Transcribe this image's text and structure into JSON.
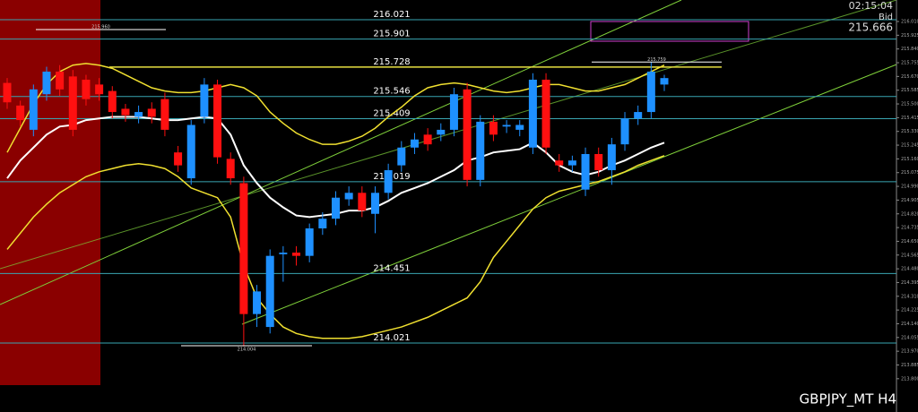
{
  "chart_data": {
    "type": "candlestick",
    "symbol": "GBPJPY_MT H4",
    "clock": "02:15:04",
    "bid_label": "Bid",
    "bid": 215.666,
    "ylim": [
      213.594,
      216.143
    ],
    "yticks": [
      {
        "value": 213.8,
        "label": "213.800"
      },
      {
        "value": 213.885,
        "label": "213.885"
      },
      {
        "value": 213.97,
        "label": "213.970"
      },
      {
        "value": 214.055,
        "label": "214.055"
      },
      {
        "value": 214.14,
        "label": "214.140"
      },
      {
        "value": 214.225,
        "label": "214.225"
      },
      {
        "value": 214.31,
        "label": "214.310"
      },
      {
        "value": 214.395,
        "label": "214.395"
      },
      {
        "value": 214.48,
        "label": "214.480"
      },
      {
        "value": 214.565,
        "label": "214.565"
      },
      {
        "value": 214.65,
        "label": "214.650"
      },
      {
        "value": 214.735,
        "label": "214.735"
      },
      {
        "value": 214.82,
        "label": "214.820"
      },
      {
        "value": 214.905,
        "label": "214.905"
      },
      {
        "value": 214.99,
        "label": "214.990"
      },
      {
        "value": 215.075,
        "label": "215.075"
      },
      {
        "value": 215.16,
        "label": "215.160"
      },
      {
        "value": 215.245,
        "label": "215.245"
      },
      {
        "value": 215.33,
        "label": "215.330"
      },
      {
        "value": 215.415,
        "label": "215.415"
      },
      {
        "value": 215.5,
        "label": "215.500"
      },
      {
        "value": 215.585,
        "label": "215.585"
      },
      {
        "value": 215.67,
        "label": "215.670"
      },
      {
        "value": 215.755,
        "label": "215.755"
      },
      {
        "value": 215.84,
        "label": "215.840"
      },
      {
        "value": 215.925,
        "label": "215.925"
      },
      {
        "value": 216.01,
        "label": "216.010"
      }
    ],
    "up_color": "#1e90ff",
    "down_color": "#ff1010",
    "ohlc": [
      [
        215.63,
        215.66,
        215.47,
        215.51
      ],
      [
        215.49,
        215.52,
        215.36,
        215.4
      ],
      [
        215.34,
        215.62,
        215.3,
        215.59
      ],
      [
        215.56,
        215.73,
        215.52,
        215.7
      ],
      [
        215.7,
        215.74,
        215.55,
        215.59
      ],
      [
        215.67,
        215.71,
        215.3,
        215.34
      ],
      [
        215.65,
        215.68,
        215.49,
        215.53
      ],
      [
        215.62,
        215.66,
        215.52,
        215.56
      ],
      [
        215.58,
        215.61,
        215.41,
        215.45
      ],
      [
        215.47,
        215.5,
        215.39,
        215.43
      ],
      [
        215.42,
        215.49,
        215.38,
        215.45
      ],
      [
        215.47,
        215.51,
        215.38,
        215.42
      ],
      [
        215.53,
        215.57,
        215.3,
        215.34
      ],
      [
        215.2,
        215.24,
        215.08,
        215.12
      ],
      [
        215.04,
        215.4,
        215,
        215.37
      ],
      [
        215.42,
        215.66,
        215.38,
        215.62
      ],
      [
        215.62,
        215.65,
        215.13,
        215.17
      ],
      [
        215.16,
        215.2,
        215,
        215.04
      ],
      [
        215.01,
        215.05,
        214,
        214.2
      ],
      [
        214.2,
        214.38,
        214.12,
        214.34
      ],
      [
        214.12,
        214.6,
        214.08,
        214.56
      ],
      [
        214.57,
        214.62,
        214.4,
        214.58
      ],
      [
        214.58,
        214.62,
        214.5,
        214.56
      ],
      [
        214.56,
        214.76,
        214.52,
        214.73
      ],
      [
        214.73,
        214.83,
        214.69,
        214.79
      ],
      [
        214.79,
        214.96,
        214.75,
        214.92
      ],
      [
        214.91,
        214.99,
        214.87,
        214.95
      ],
      [
        214.95,
        214.99,
        214.8,
        214.84
      ],
      [
        214.82,
        214.99,
        214.7,
        214.95
      ],
      [
        214.95,
        215.13,
        214.91,
        215.09
      ],
      [
        215.12,
        215.27,
        215.08,
        215.23
      ],
      [
        215.23,
        215.32,
        215.19,
        215.28
      ],
      [
        215.31,
        215.35,
        215.21,
        215.25
      ],
      [
        215.31,
        215.38,
        215.27,
        215.34
      ],
      [
        215.34,
        215.6,
        215.3,
        215.56
      ],
      [
        215.59,
        215.63,
        214.99,
        215.03
      ],
      [
        215.03,
        215.43,
        214.99,
        215.39
      ],
      [
        215.39,
        215.43,
        215.27,
        215.31
      ],
      [
        215.36,
        215.4,
        215.32,
        215.37
      ],
      [
        215.34,
        215.4,
        215.3,
        215.37
      ],
      [
        215.23,
        215.69,
        215.19,
        215.65
      ],
      [
        215.65,
        215.69,
        215.19,
        215.23
      ],
      [
        215.15,
        215.19,
        215.08,
        215.12
      ],
      [
        215.12,
        215.18,
        215.08,
        215.15
      ],
      [
        214.97,
        215.23,
        214.93,
        215.19
      ],
      [
        215.19,
        215.23,
        215.05,
        215.09
      ],
      [
        215.09,
        215.29,
        215,
        215.25
      ],
      [
        215.25,
        215.45,
        215.21,
        215.41
      ],
      [
        215.41,
        215.49,
        215.37,
        215.45
      ],
      [
        215.45,
        215.76,
        215.41,
        215.7
      ],
      [
        215.62,
        215.68,
        215.58,
        215.66
      ]
    ],
    "series": [
      {
        "color": "#ffffff",
        "width": 2,
        "values": [
          215.04,
          215.15,
          215.23,
          215.31,
          215.36,
          215.37,
          215.4,
          215.41,
          215.42,
          215.42,
          215.42,
          215.41,
          215.4,
          215.4,
          215.41,
          215.42,
          215.41,
          215.31,
          215.12,
          215.01,
          214.92,
          214.86,
          214.81,
          214.8,
          214.81,
          214.82,
          214.84,
          214.84,
          214.86,
          214.9,
          214.95,
          214.98,
          215.01,
          215.05,
          215.09,
          215.15,
          215.17,
          215.2,
          215.21,
          215.22,
          215.26,
          215.2,
          215.12,
          215.08,
          215.06,
          215.08,
          215.12,
          215.15,
          215.19,
          215.23,
          215.26
        ]
      },
      {
        "color": "#f0e030",
        "width": 1.5,
        "values": [
          215.2,
          215.35,
          215.5,
          215.62,
          215.7,
          215.74,
          215.75,
          215.74,
          215.72,
          215.68,
          215.64,
          215.6,
          215.58,
          215.57,
          215.57,
          215.58,
          215.6,
          215.62,
          215.6,
          215.55,
          215.45,
          215.38,
          215.32,
          215.28,
          215.25,
          215.25,
          215.27,
          215.3,
          215.35,
          215.42,
          215.48,
          215.55,
          215.6,
          215.62,
          215.63,
          215.62,
          215.6,
          215.58,
          215.57,
          215.58,
          215.6,
          215.62,
          215.62,
          215.6,
          215.58,
          215.58,
          215.6,
          215.62,
          215.66,
          215.7,
          215.74
        ]
      },
      {
        "color": "#f0e030",
        "width": 1.5,
        "values": [
          214.6,
          214.7,
          214.8,
          214.88,
          214.95,
          215,
          215.05,
          215.08,
          215.1,
          215.12,
          215.13,
          215.12,
          215.1,
          215.05,
          214.98,
          214.95,
          214.92,
          214.8,
          214.5,
          214.3,
          214.2,
          214.12,
          214.08,
          214.06,
          214.05,
          214.05,
          214.05,
          214.06,
          214.08,
          214.1,
          214.12,
          214.15,
          214.18,
          214.22,
          214.26,
          214.3,
          214.4,
          214.55,
          214.65,
          214.75,
          214.85,
          214.92,
          214.96,
          214.98,
          215,
          215.02,
          215.05,
          215.08,
          215.12,
          215.15,
          215.18
        ]
      }
    ],
    "levels": [
      216.021,
      215.901,
      215.728,
      215.546,
      215.409,
      215.019,
      214.451,
      214.021
    ],
    "level_colors": [
      "#39a6b2",
      "#39a6b2",
      "#e8e040",
      "#39a6b2",
      "#39a6b2",
      "#39a6b2",
      "#39a6b2",
      "#39a6b2"
    ],
    "annotations": [
      {
        "text": "215.960",
        "value": 215.96
      },
      {
        "text": "215.759",
        "value": 215.759
      },
      {
        "text": "214.004",
        "value": 214.004
      }
    ]
  }
}
